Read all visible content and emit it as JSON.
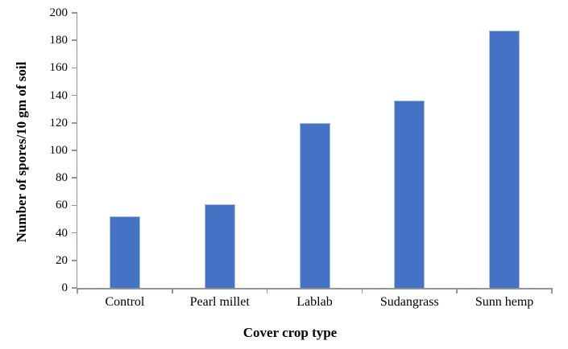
{
  "chart_data": {
    "type": "bar",
    "categories": [
      "Control",
      "Pearl millet",
      "Lablab",
      "Sudangrass",
      "Sunn hemp"
    ],
    "values": [
      52,
      61,
      120,
      136,
      187
    ],
    "xlabel": "Cover crop type",
    "ylabel": "Number of spores/10 gm of soil",
    "ylim": [
      0,
      200
    ],
    "ytick_step": 20,
    "ytick_labels": [
      "0",
      "20",
      "40",
      "60",
      "80",
      "100",
      "120",
      "140",
      "160",
      "180",
      "200"
    ],
    "grid": false,
    "legend": "none",
    "bar_color": "#4472C4",
    "bar_border_color": "#A9BFE6",
    "axis_color": "#8E959E",
    "text_color": "#000000",
    "background": "#FFFFFF"
  }
}
